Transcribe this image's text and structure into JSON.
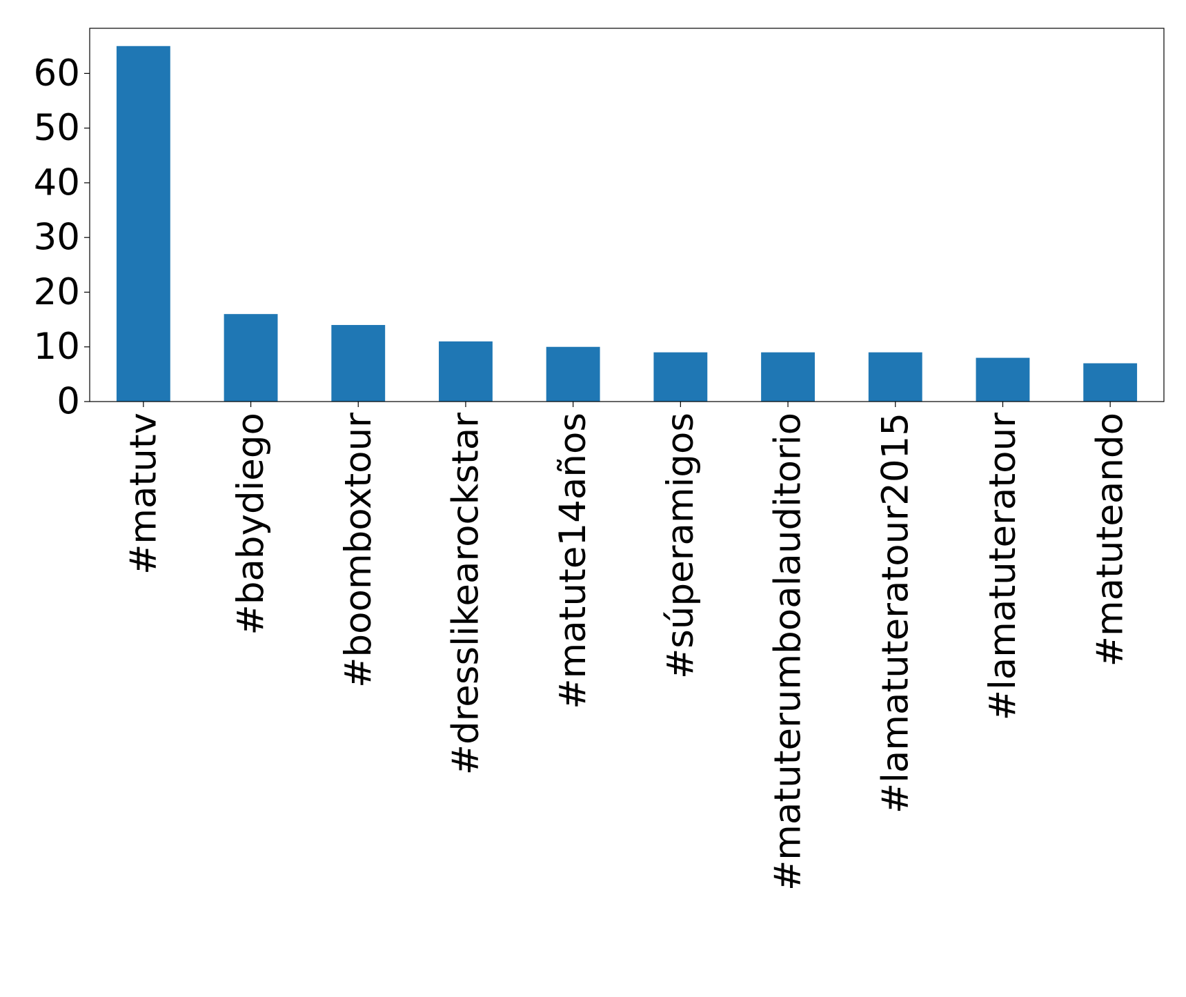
{
  "chart_data": {
    "type": "bar",
    "categories": [
      "#matutv",
      "#babydiego",
      "#boomboxtour",
      "#dresslikearockstar",
      "#matute14años",
      "#súperamigos",
      "#matuterumboalauditorio",
      "#lamatuteratour2015",
      "#lamatuteratour",
      "#matuteando"
    ],
    "values": [
      65,
      16,
      14,
      11,
      10,
      9,
      9,
      9,
      8,
      7
    ],
    "color": "#1f77b4",
    "ylim": [
      0,
      68.25
    ],
    "yticks": [
      0,
      10,
      20,
      30,
      40,
      50,
      60
    ],
    "grid": false
  }
}
